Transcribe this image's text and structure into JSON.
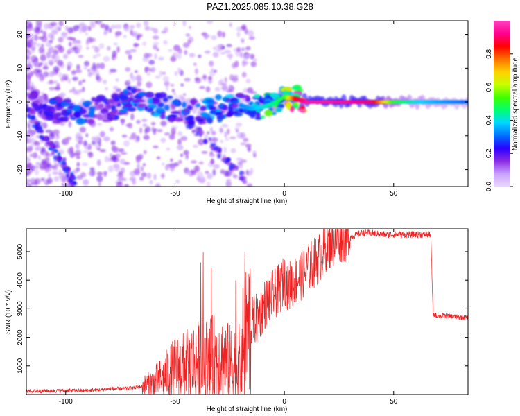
{
  "chart_data": [
    {
      "type": "heatmap",
      "title": "PAZ1.2025.085.10.38.G28",
      "xlabel": "Height of straight line (km)",
      "ylabel": "Frequency (Hz)",
      "xlim": [
        -118,
        84
      ],
      "ylim": [
        -25,
        24
      ],
      "x_ticks": [
        -100,
        -50,
        0,
        50
      ],
      "y_ticks": [
        -20,
        -10,
        0,
        10,
        20
      ],
      "colorbar": {
        "label": "Normalized spectral amplitude",
        "range": [
          0,
          1
        ],
        "ticks": [
          0.0,
          0.2,
          0.4,
          0.6,
          0.8
        ],
        "colors": [
          "#e8d8ff",
          "#c9a0ff",
          "#8a2be2",
          "#2a00ff",
          "#0070ff",
          "#00d8ff",
          "#00ff70",
          "#40ff00",
          "#c8ff00",
          "#ffd000",
          "#ff7000",
          "#ff0000",
          "#ff0090",
          "#ff40c0"
        ]
      },
      "ridge": {
        "x": [
          -118,
          -110,
          -100,
          -90,
          -80,
          -70,
          -60,
          -50,
          -40,
          -30,
          -20,
          -15,
          -10,
          -5,
          0,
          5,
          10,
          20,
          30,
          40,
          50,
          60,
          70,
          84
        ],
        "frequency": [
          0.0,
          -1.5,
          -3.0,
          -2.5,
          -2.0,
          1.0,
          0.0,
          -2.0,
          -3.0,
          -2.0,
          -1.0,
          -2.0,
          -1.5,
          -0.5,
          1.5,
          1.0,
          0.0,
          0.0,
          0.0,
          0.0,
          0.0,
          0.0,
          0.0,
          0.0
        ],
        "amplitude": [
          0.15,
          0.2,
          0.25,
          0.25,
          0.2,
          0.28,
          0.28,
          0.25,
          0.28,
          0.3,
          0.32,
          0.35,
          0.4,
          0.45,
          0.5,
          0.85,
          0.95,
          0.95,
          0.93,
          0.9,
          0.5,
          0.4,
          0.35,
          0.3
        ]
      }
    },
    {
      "type": "line",
      "xlabel": "Height of straight line (km)",
      "ylabel": "SNR (10 * v/v)",
      "xlim": [
        -118,
        84
      ],
      "ylim": [
        0,
        5800
      ],
      "x_ticks": [
        -100,
        -50,
        0,
        50
      ],
      "y_ticks": [
        1000,
        2000,
        3000,
        4000,
        5000
      ],
      "color": "#ee2222",
      "series": [
        {
          "x": [
            -118,
            -110,
            -100,
            -90,
            -85,
            -80,
            -75,
            -70,
            -65,
            -60,
            -55,
            -50,
            -45,
            -40,
            -35,
            -30,
            -25,
            -20,
            -18,
            -15,
            -12,
            -10,
            -8,
            -5,
            -2,
            0,
            2,
            5,
            8,
            10,
            12,
            15,
            20,
            25,
            30,
            35,
            40,
            45,
            50,
            55,
            60,
            67,
            68,
            70,
            75,
            80,
            84
          ],
          "y": [
            120,
            120,
            130,
            140,
            160,
            200,
            200,
            220,
            280,
            420,
            650,
            900,
            1000,
            1200,
            1200,
            1300,
            1100,
            1100,
            2300,
            2500,
            2700,
            3000,
            3300,
            3500,
            3700,
            4000,
            3800,
            4000,
            4200,
            4300,
            4500,
            4700,
            5200,
            5500,
            5500,
            5650,
            5650,
            5600,
            5600,
            5600,
            5600,
            5600,
            2800,
            2750,
            2750,
            2700,
            2700
          ]
        }
      ]
    }
  ]
}
